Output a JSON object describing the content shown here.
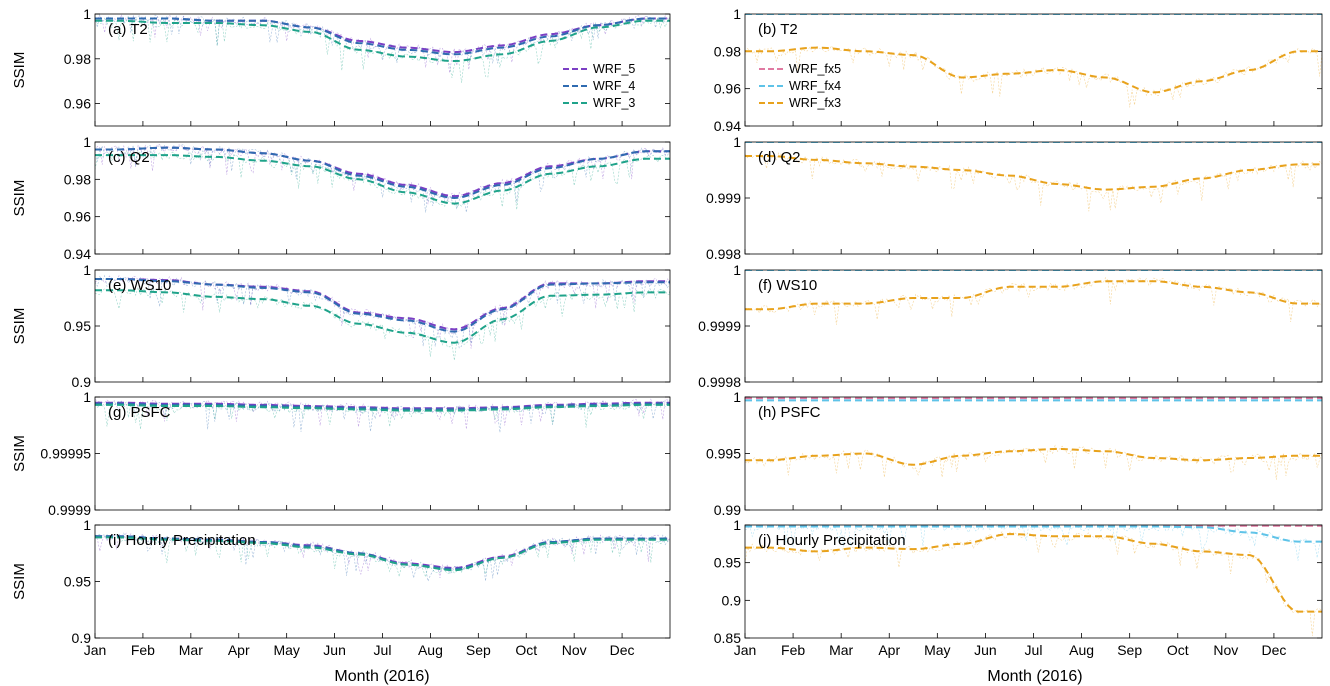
{
  "figure": {
    "x_axis_label": "Month (2016)",
    "months": [
      "Jan",
      "Feb",
      "Mar",
      "Apr",
      "May",
      "Jun",
      "Jul",
      "Aug",
      "Sep",
      "Oct",
      "Nov",
      "Dec"
    ],
    "series_colors": {
      "WRF_5": "#7b3fc4",
      "WRF_4": "#2f6bb0",
      "WRF_3": "#1fa38a",
      "WRF_fx5": "#e07aa2",
      "WRF_fx4": "#5ec3e8",
      "WRF_fx3": "#e8a21c"
    }
  },
  "chart_data": [
    {
      "id": "a",
      "type": "line",
      "label": "(a) T2",
      "ylabel": "SSIM",
      "ylim": [
        0.95,
        1.0
      ],
      "yticks": [
        {
          "v": 1,
          "t": "1"
        },
        {
          "v": 0.98,
          "t": "0.98"
        },
        {
          "v": 0.96,
          "t": "0.96"
        }
      ],
      "x": [
        "Jan",
        "Feb",
        "Mar",
        "Apr",
        "May",
        "Jun",
        "Jul",
        "Aug",
        "Sep",
        "Oct",
        "Nov",
        "Dec"
      ],
      "legend": {
        "position": "top-right",
        "entries": [
          "WRF_5",
          "WRF_4",
          "WRF_3"
        ]
      },
      "series": [
        {
          "name": "WRF_5",
          "values": [
            0.998,
            0.998,
            0.997,
            0.997,
            0.994,
            0.988,
            0.985,
            0.983,
            0.986,
            0.991,
            0.995,
            0.998
          ]
        },
        {
          "name": "WRF_4",
          "values": [
            0.998,
            0.998,
            0.997,
            0.997,
            0.994,
            0.987,
            0.984,
            0.982,
            0.985,
            0.99,
            0.995,
            0.998
          ]
        },
        {
          "name": "WRF_3",
          "values": [
            0.997,
            0.996,
            0.996,
            0.995,
            0.992,
            0.984,
            0.981,
            0.979,
            0.982,
            0.988,
            0.994,
            0.997
          ]
        }
      ]
    },
    {
      "id": "b",
      "type": "line",
      "label": "(b) T2",
      "ylabel": "",
      "ylim": [
        0.94,
        1.0
      ],
      "yticks": [
        {
          "v": 1,
          "t": "1"
        },
        {
          "v": 0.98,
          "t": "0.98"
        },
        {
          "v": 0.96,
          "t": "0.96"
        },
        {
          "v": 0.94,
          "t": "0.94"
        }
      ],
      "x": [
        "Jan",
        "Feb",
        "Mar",
        "Apr",
        "May",
        "Jun",
        "Jul",
        "Aug",
        "Sep",
        "Oct",
        "Nov",
        "Dec"
      ],
      "legend": {
        "position": "top-left",
        "entries": [
          "WRF_fx5",
          "WRF_fx4",
          "WRF_fx3"
        ]
      },
      "series": [
        {
          "name": "WRF_fx5",
          "values": [
            1,
            1,
            1,
            1,
            1,
            1,
            1,
            1,
            1,
            1,
            1,
            1
          ]
        },
        {
          "name": "WRF_fx4",
          "values": [
            1,
            1,
            1,
            1,
            1,
            1,
            1,
            1,
            1,
            1,
            1,
            1
          ]
        },
        {
          "name": "WRF_fx3",
          "values": [
            0.98,
            0.982,
            0.98,
            0.978,
            0.966,
            0.968,
            0.97,
            0.966,
            0.958,
            0.964,
            0.97,
            0.98
          ]
        }
      ]
    },
    {
      "id": "c",
      "type": "line",
      "label": "(c) Q2",
      "ylabel": "SSIM",
      "ylim": [
        0.94,
        1.0
      ],
      "yticks": [
        {
          "v": 1,
          "t": "1"
        },
        {
          "v": 0.98,
          "t": "0.98"
        },
        {
          "v": 0.96,
          "t": "0.96"
        },
        {
          "v": 0.94,
          "t": "0.94"
        }
      ],
      "x": [
        "Jan",
        "Feb",
        "Mar",
        "Apr",
        "May",
        "Jun",
        "Jul",
        "Aug",
        "Sep",
        "Oct",
        "Nov",
        "Dec"
      ],
      "series": [
        {
          "name": "WRF_5",
          "values": [
            0.996,
            0.997,
            0.996,
            0.994,
            0.99,
            0.983,
            0.977,
            0.971,
            0.978,
            0.987,
            0.991,
            0.995
          ]
        },
        {
          "name": "WRF_4",
          "values": [
            0.996,
            0.997,
            0.996,
            0.994,
            0.99,
            0.982,
            0.976,
            0.97,
            0.977,
            0.986,
            0.991,
            0.995
          ]
        },
        {
          "name": "WRF_3",
          "values": [
            0.993,
            0.993,
            0.992,
            0.99,
            0.987,
            0.98,
            0.973,
            0.967,
            0.974,
            0.983,
            0.987,
            0.991
          ]
        }
      ]
    },
    {
      "id": "d",
      "type": "line",
      "label": "(d) Q2",
      "ylabel": "",
      "ylim": [
        0.998,
        1.0
      ],
      "yticks": [
        {
          "v": 1,
          "t": "1"
        },
        {
          "v": 0.999,
          "t": "0.999"
        },
        {
          "v": 0.998,
          "t": "0.998"
        }
      ],
      "x": [
        "Jan",
        "Feb",
        "Mar",
        "Apr",
        "May",
        "Jun",
        "Jul",
        "Aug",
        "Sep",
        "Oct",
        "Nov",
        "Dec"
      ],
      "series": [
        {
          "name": "WRF_fx5",
          "values": [
            1,
            1,
            1,
            1,
            1,
            1,
            1,
            1,
            1,
            1,
            1,
            1
          ]
        },
        {
          "name": "WRF_fx4",
          "values": [
            1,
            1,
            1,
            1,
            1,
            1,
            1,
            1,
            1,
            1,
            1,
            1
          ]
        },
        {
          "name": "WRF_fx3",
          "values": [
            0.99975,
            0.99968,
            0.99962,
            0.99956,
            0.9995,
            0.9994,
            0.99925,
            0.99915,
            0.9992,
            0.99935,
            0.9995,
            0.9996
          ]
        }
      ]
    },
    {
      "id": "e",
      "type": "line",
      "label": "(e) WS10",
      "ylabel": "SSIM",
      "ylim": [
        0.9,
        1.0
      ],
      "yticks": [
        {
          "v": 1,
          "t": "1"
        },
        {
          "v": 0.95,
          "t": "0.95"
        },
        {
          "v": 0.9,
          "t": "0.9"
        }
      ],
      "x": [
        "Jan",
        "Feb",
        "Mar",
        "Apr",
        "May",
        "Jun",
        "Jul",
        "Aug",
        "Sep",
        "Oct",
        "Nov",
        "Dec"
      ],
      "series": [
        {
          "name": "WRF_5",
          "values": [
            0.992,
            0.991,
            0.987,
            0.985,
            0.981,
            0.962,
            0.957,
            0.947,
            0.966,
            0.988,
            0.988,
            0.99
          ]
        },
        {
          "name": "WRF_4",
          "values": [
            0.992,
            0.99,
            0.987,
            0.984,
            0.98,
            0.961,
            0.955,
            0.945,
            0.965,
            0.987,
            0.988,
            0.989
          ]
        },
        {
          "name": "WRF_3",
          "values": [
            0.982,
            0.98,
            0.976,
            0.974,
            0.968,
            0.952,
            0.944,
            0.935,
            0.956,
            0.977,
            0.978,
            0.98
          ]
        }
      ]
    },
    {
      "id": "f",
      "type": "line",
      "label": "(f) WS10",
      "ylabel": "",
      "ylim": [
        0.9998,
        1.0
      ],
      "yticks": [
        {
          "v": 1,
          "t": "1"
        },
        {
          "v": 0.9999,
          "t": "0.9999"
        },
        {
          "v": 0.9998,
          "t": "0.9998"
        }
      ],
      "x": [
        "Jan",
        "Feb",
        "Mar",
        "Apr",
        "May",
        "Jun",
        "Jul",
        "Aug",
        "Sep",
        "Oct",
        "Nov",
        "Dec"
      ],
      "series": [
        {
          "name": "WRF_fx5",
          "values": [
            1,
            1,
            1,
            1,
            1,
            1,
            1,
            1,
            1,
            1,
            1,
            1
          ]
        },
        {
          "name": "WRF_fx4",
          "values": [
            1,
            1,
            1,
            1,
            1,
            1,
            1,
            1,
            1,
            1,
            1,
            1
          ]
        },
        {
          "name": "WRF_fx3",
          "values": [
            0.99993,
            0.99994,
            0.99994,
            0.99995,
            0.99995,
            0.99997,
            0.99997,
            0.99998,
            0.99998,
            0.99997,
            0.99996,
            0.99994
          ]
        }
      ]
    },
    {
      "id": "g",
      "type": "line",
      "label": "(g) PSFC",
      "ylabel": "SSIM",
      "ylim": [
        0.9999,
        1.0
      ],
      "yticks": [
        {
          "v": 1,
          "t": "1"
        },
        {
          "v": 0.99995,
          "t": "0.99995"
        },
        {
          "v": 0.9999,
          "t": "0.9999"
        }
      ],
      "x": [
        "Jan",
        "Feb",
        "Mar",
        "Apr",
        "May",
        "Jun",
        "Jul",
        "Aug",
        "Sep",
        "Oct",
        "Nov",
        "Dec"
      ],
      "series": [
        {
          "name": "WRF_5",
          "values": [
            0.999995,
            0.999994,
            0.999994,
            0.999993,
            0.999992,
            0.999991,
            0.99999,
            0.99999,
            0.999991,
            0.999993,
            0.999994,
            0.999995
          ]
        },
        {
          "name": "WRF_4",
          "values": [
            0.999994,
            0.999993,
            0.999993,
            0.999992,
            0.999991,
            0.99999,
            0.999989,
            0.999989,
            0.99999,
            0.999992,
            0.999993,
            0.999994
          ]
        },
        {
          "name": "WRF_3",
          "values": [
            0.999993,
            0.999992,
            0.999992,
            0.999991,
            0.99999,
            0.999989,
            0.999988,
            0.999988,
            0.999989,
            0.999991,
            0.999992,
            0.999993
          ]
        }
      ]
    },
    {
      "id": "h",
      "type": "line",
      "label": "(h) PSFC",
      "ylabel": "",
      "ylim": [
        0.99,
        1.0
      ],
      "yticks": [
        {
          "v": 1,
          "t": "1"
        },
        {
          "v": 0.995,
          "t": "0.995"
        },
        {
          "v": 0.99,
          "t": "0.99"
        }
      ],
      "x": [
        "Jan",
        "Feb",
        "Mar",
        "Apr",
        "May",
        "Jun",
        "Jul",
        "Aug",
        "Sep",
        "Oct",
        "Nov",
        "Dec"
      ],
      "series": [
        {
          "name": "WRF_fx5",
          "values": [
            0.9999,
            0.9999,
            0.9999,
            0.9999,
            0.9999,
            0.9999,
            0.9999,
            0.9999,
            0.9999,
            0.9999,
            0.9999,
            0.9999
          ]
        },
        {
          "name": "WRF_fx4",
          "values": [
            0.9997,
            0.9997,
            0.9997,
            0.9997,
            0.9997,
            0.9997,
            0.9997,
            0.9997,
            0.9997,
            0.9997,
            0.9997,
            0.9997
          ]
        },
        {
          "name": "WRF_fx3",
          "values": [
            0.9944,
            0.9948,
            0.995,
            0.994,
            0.9948,
            0.9952,
            0.9954,
            0.9952,
            0.9946,
            0.9944,
            0.9946,
            0.9948
          ]
        }
      ]
    },
    {
      "id": "i",
      "type": "line",
      "label": "(i) Hourly Precipitation",
      "ylabel": "SSIM",
      "ylim": [
        0.9,
        1.0
      ],
      "yticks": [
        {
          "v": 1,
          "t": "1"
        },
        {
          "v": 0.95,
          "t": "0.95"
        },
        {
          "v": 0.9,
          "t": "0.9"
        }
      ],
      "x": [
        "Jan",
        "Feb",
        "Mar",
        "Apr",
        "May",
        "Jun",
        "Jul",
        "Aug",
        "Sep",
        "Oct",
        "Nov",
        "Dec"
      ],
      "series": [
        {
          "name": "WRF_5",
          "values": [
            0.99,
            0.988,
            0.987,
            0.985,
            0.982,
            0.975,
            0.966,
            0.962,
            0.972,
            0.985,
            0.988,
            0.988
          ]
        },
        {
          "name": "WRF_4",
          "values": [
            0.99,
            0.988,
            0.987,
            0.985,
            0.981,
            0.975,
            0.965,
            0.961,
            0.971,
            0.985,
            0.988,
            0.988
          ]
        },
        {
          "name": "WRF_3",
          "values": [
            0.989,
            0.987,
            0.986,
            0.984,
            0.98,
            0.974,
            0.965,
            0.96,
            0.971,
            0.984,
            0.987,
            0.987
          ]
        }
      ]
    },
    {
      "id": "j",
      "type": "line",
      "label": "(j) Hourly Precipitation",
      "ylabel": "",
      "ylim": [
        0.85,
        1.0
      ],
      "yticks": [
        {
          "v": 1,
          "t": "1"
        },
        {
          "v": 0.95,
          "t": "0.95"
        },
        {
          "v": 0.9,
          "t": "0.9"
        },
        {
          "v": 0.85,
          "t": "0.85"
        }
      ],
      "x": [
        "Jan",
        "Feb",
        "Mar",
        "Apr",
        "May",
        "Jun",
        "Jul",
        "Aug",
        "Sep",
        "Oct",
        "Nov",
        "Dec"
      ],
      "series": [
        {
          "name": "WRF_fx5",
          "values": [
            0.999,
            0.999,
            0.999,
            0.999,
            0.999,
            0.999,
            0.999,
            0.999,
            0.999,
            0.999,
            0.999,
            0.999
          ]
        },
        {
          "name": "WRF_fx4",
          "values": [
            0.998,
            0.998,
            0.998,
            0.998,
            0.998,
            0.998,
            0.998,
            0.998,
            0.998,
            0.997,
            0.99,
            0.978
          ]
        },
        {
          "name": "WRF_fx3",
          "values": [
            0.97,
            0.965,
            0.97,
            0.968,
            0.975,
            0.988,
            0.985,
            0.985,
            0.975,
            0.965,
            0.96,
            0.885
          ]
        }
      ]
    }
  ]
}
